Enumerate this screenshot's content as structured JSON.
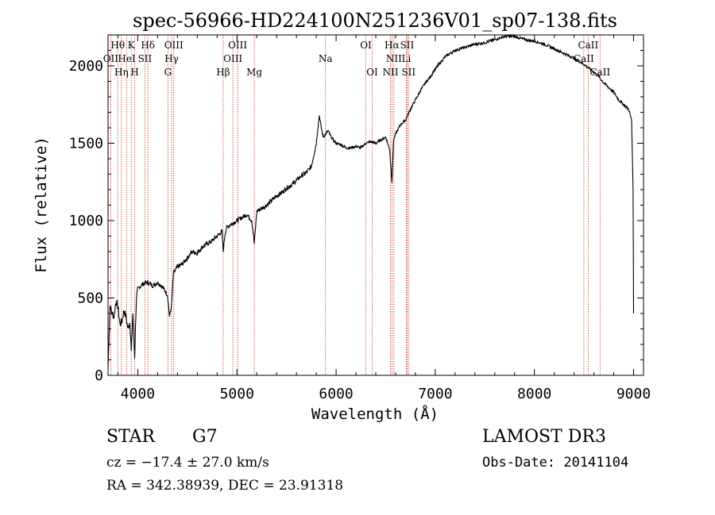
{
  "chart_data": {
    "type": "line",
    "title": "spec-56966-HD224100N251236V01_sp07-138.fits",
    "xlabel": "Wavelength (Å)",
    "ylabel": "Flux (relative)",
    "xlim": [
      3700,
      9100
    ],
    "ylim": [
      0,
      2200
    ],
    "x_ticks": [
      4000,
      5000,
      6000,
      7000,
      8000,
      9000
    ],
    "x_tick_labels": [
      "4000",
      "5000",
      "6000",
      "7000",
      "8000",
      "9000"
    ],
    "y_ticks": [
      0,
      500,
      1000,
      1500,
      2000
    ],
    "y_tick_labels": [
      "0",
      "500",
      "1000",
      "1500",
      "2000"
    ],
    "series": [
      {
        "name": "spectrum",
        "x": [
          3700,
          3720,
          3740,
          3760,
          3780,
          3800,
          3820,
          3840,
          3860,
          3880,
          3900,
          3920,
          3935,
          3950,
          3968,
          3985,
          4000,
          4050,
          4101,
          4150,
          4200,
          4250,
          4300,
          4320,
          4340,
          4360,
          4400,
          4450,
          4500,
          4550,
          4600,
          4650,
          4700,
          4750,
          4800,
          4850,
          4861,
          4880,
          4900,
          4950,
          5000,
          5050,
          5100,
          5150,
          5175,
          5200,
          5250,
          5300,
          5350,
          5400,
          5450,
          5500,
          5550,
          5600,
          5650,
          5700,
          5750,
          5800,
          5830,
          5850,
          5870,
          5893,
          5920,
          5950,
          6000,
          6050,
          6100,
          6150,
          6200,
          6250,
          6300,
          6350,
          6400,
          6450,
          6500,
          6520,
          6540,
          6563,
          6580,
          6600,
          6650,
          6700,
          6750,
          6800,
          6850,
          6900,
          6950,
          7000,
          7050,
          7100,
          7150,
          7200,
          7300,
          7400,
          7500,
          7600,
          7700,
          7800,
          7900,
          8000,
          8100,
          8200,
          8300,
          8400,
          8500,
          8540,
          8600,
          8650,
          8700,
          8750,
          8800,
          8850,
          8900,
          8950,
          8980,
          8995,
          9000
        ],
        "values": [
          50,
          450,
          400,
          380,
          480,
          440,
          330,
          350,
          420,
          380,
          300,
          350,
          150,
          400,
          120,
          480,
          560,
          590,
          600,
          580,
          600,
          570,
          520,
          380,
          450,
          660,
          700,
          720,
          760,
          800,
          790,
          830,
          850,
          870,
          900,
          930,
          800,
          920,
          960,
          980,
          1000,
          1020,
          1040,
          1000,
          850,
          1060,
          1080,
          1100,
          1130,
          1160,
          1180,
          1210,
          1230,
          1260,
          1290,
          1310,
          1350,
          1500,
          1680,
          1600,
          1540,
          1560,
          1580,
          1540,
          1500,
          1490,
          1470,
          1470,
          1480,
          1470,
          1500,
          1510,
          1500,
          1520,
          1540,
          1500,
          1460,
          1250,
          1520,
          1560,
          1620,
          1650,
          1720,
          1780,
          1840,
          1890,
          1930,
          1980,
          2020,
          2060,
          2080,
          2100,
          2120,
          2140,
          2150,
          2170,
          2190,
          2190,
          2170,
          2160,
          2140,
          2110,
          2080,
          2050,
          2010,
          1990,
          1960,
          1930,
          1890,
          1860,
          1830,
          1780,
          1750,
          1720,
          1650,
          1200,
          400
        ]
      }
    ],
    "lines": [
      {
        "name": "Hθ",
        "x": 3798,
        "row": 0
      },
      {
        "name": "OII",
        "x": 3727,
        "row": 1
      },
      {
        "name": "Hη",
        "x": 3835,
        "row": 2
      },
      {
        "name": "HeI",
        "x": 3889,
        "row": 1
      },
      {
        "name": "K",
        "x": 3934,
        "row": 0
      },
      {
        "name": "H",
        "x": 3969,
        "row": 2
      },
      {
        "name": "SII",
        "x": 4072,
        "row": 1
      },
      {
        "name": "Hδ",
        "x": 4102,
        "row": 0
      },
      {
        "name": "Hγ",
        "x": 4341,
        "row": 1
      },
      {
        "name": "G",
        "x": 4304,
        "row": 2
      },
      {
        "name": "OIII",
        "x": 4363,
        "row": 0
      },
      {
        "name": "Hβ",
        "x": 4861,
        "row": 2
      },
      {
        "name": "OIII",
        "x": 4959,
        "row": 1
      },
      {
        "name": "OIII",
        "x": 5007,
        "row": 0
      },
      {
        "name": "Mg",
        "x": 5175,
        "row": 2
      },
      {
        "name": "Na",
        "x": 5893,
        "row": 1
      },
      {
        "name": "OI",
        "x": 6300,
        "row": 0
      },
      {
        "name": "OI",
        "x": 6364,
        "row": 2
      },
      {
        "name": "NII",
        "x": 6548,
        "row": 2
      },
      {
        "name": "Hα",
        "x": 6563,
        "row": 0
      },
      {
        "name": "NII",
        "x": 6583,
        "row": 1
      },
      {
        "name": "Li",
        "x": 6708,
        "row": 1
      },
      {
        "name": "SII",
        "x": 6716,
        "row": 0
      },
      {
        "name": "SII",
        "x": 6731,
        "row": 2
      },
      {
        "name": "CaII",
        "x": 8498,
        "row": 1
      },
      {
        "name": "CaII",
        "x": 8542,
        "row": 0
      },
      {
        "name": "CaII",
        "x": 8662,
        "row": 2
      }
    ]
  },
  "info": {
    "object_class": "STAR",
    "subclass": "G7",
    "survey": "LAMOST DR3",
    "redshift": "cz = −17.4 ± 27.0 km/s",
    "obs_date": "Obs-Date: 20141104",
    "coords": "RA = 342.38939, DEC =  23.91318"
  }
}
